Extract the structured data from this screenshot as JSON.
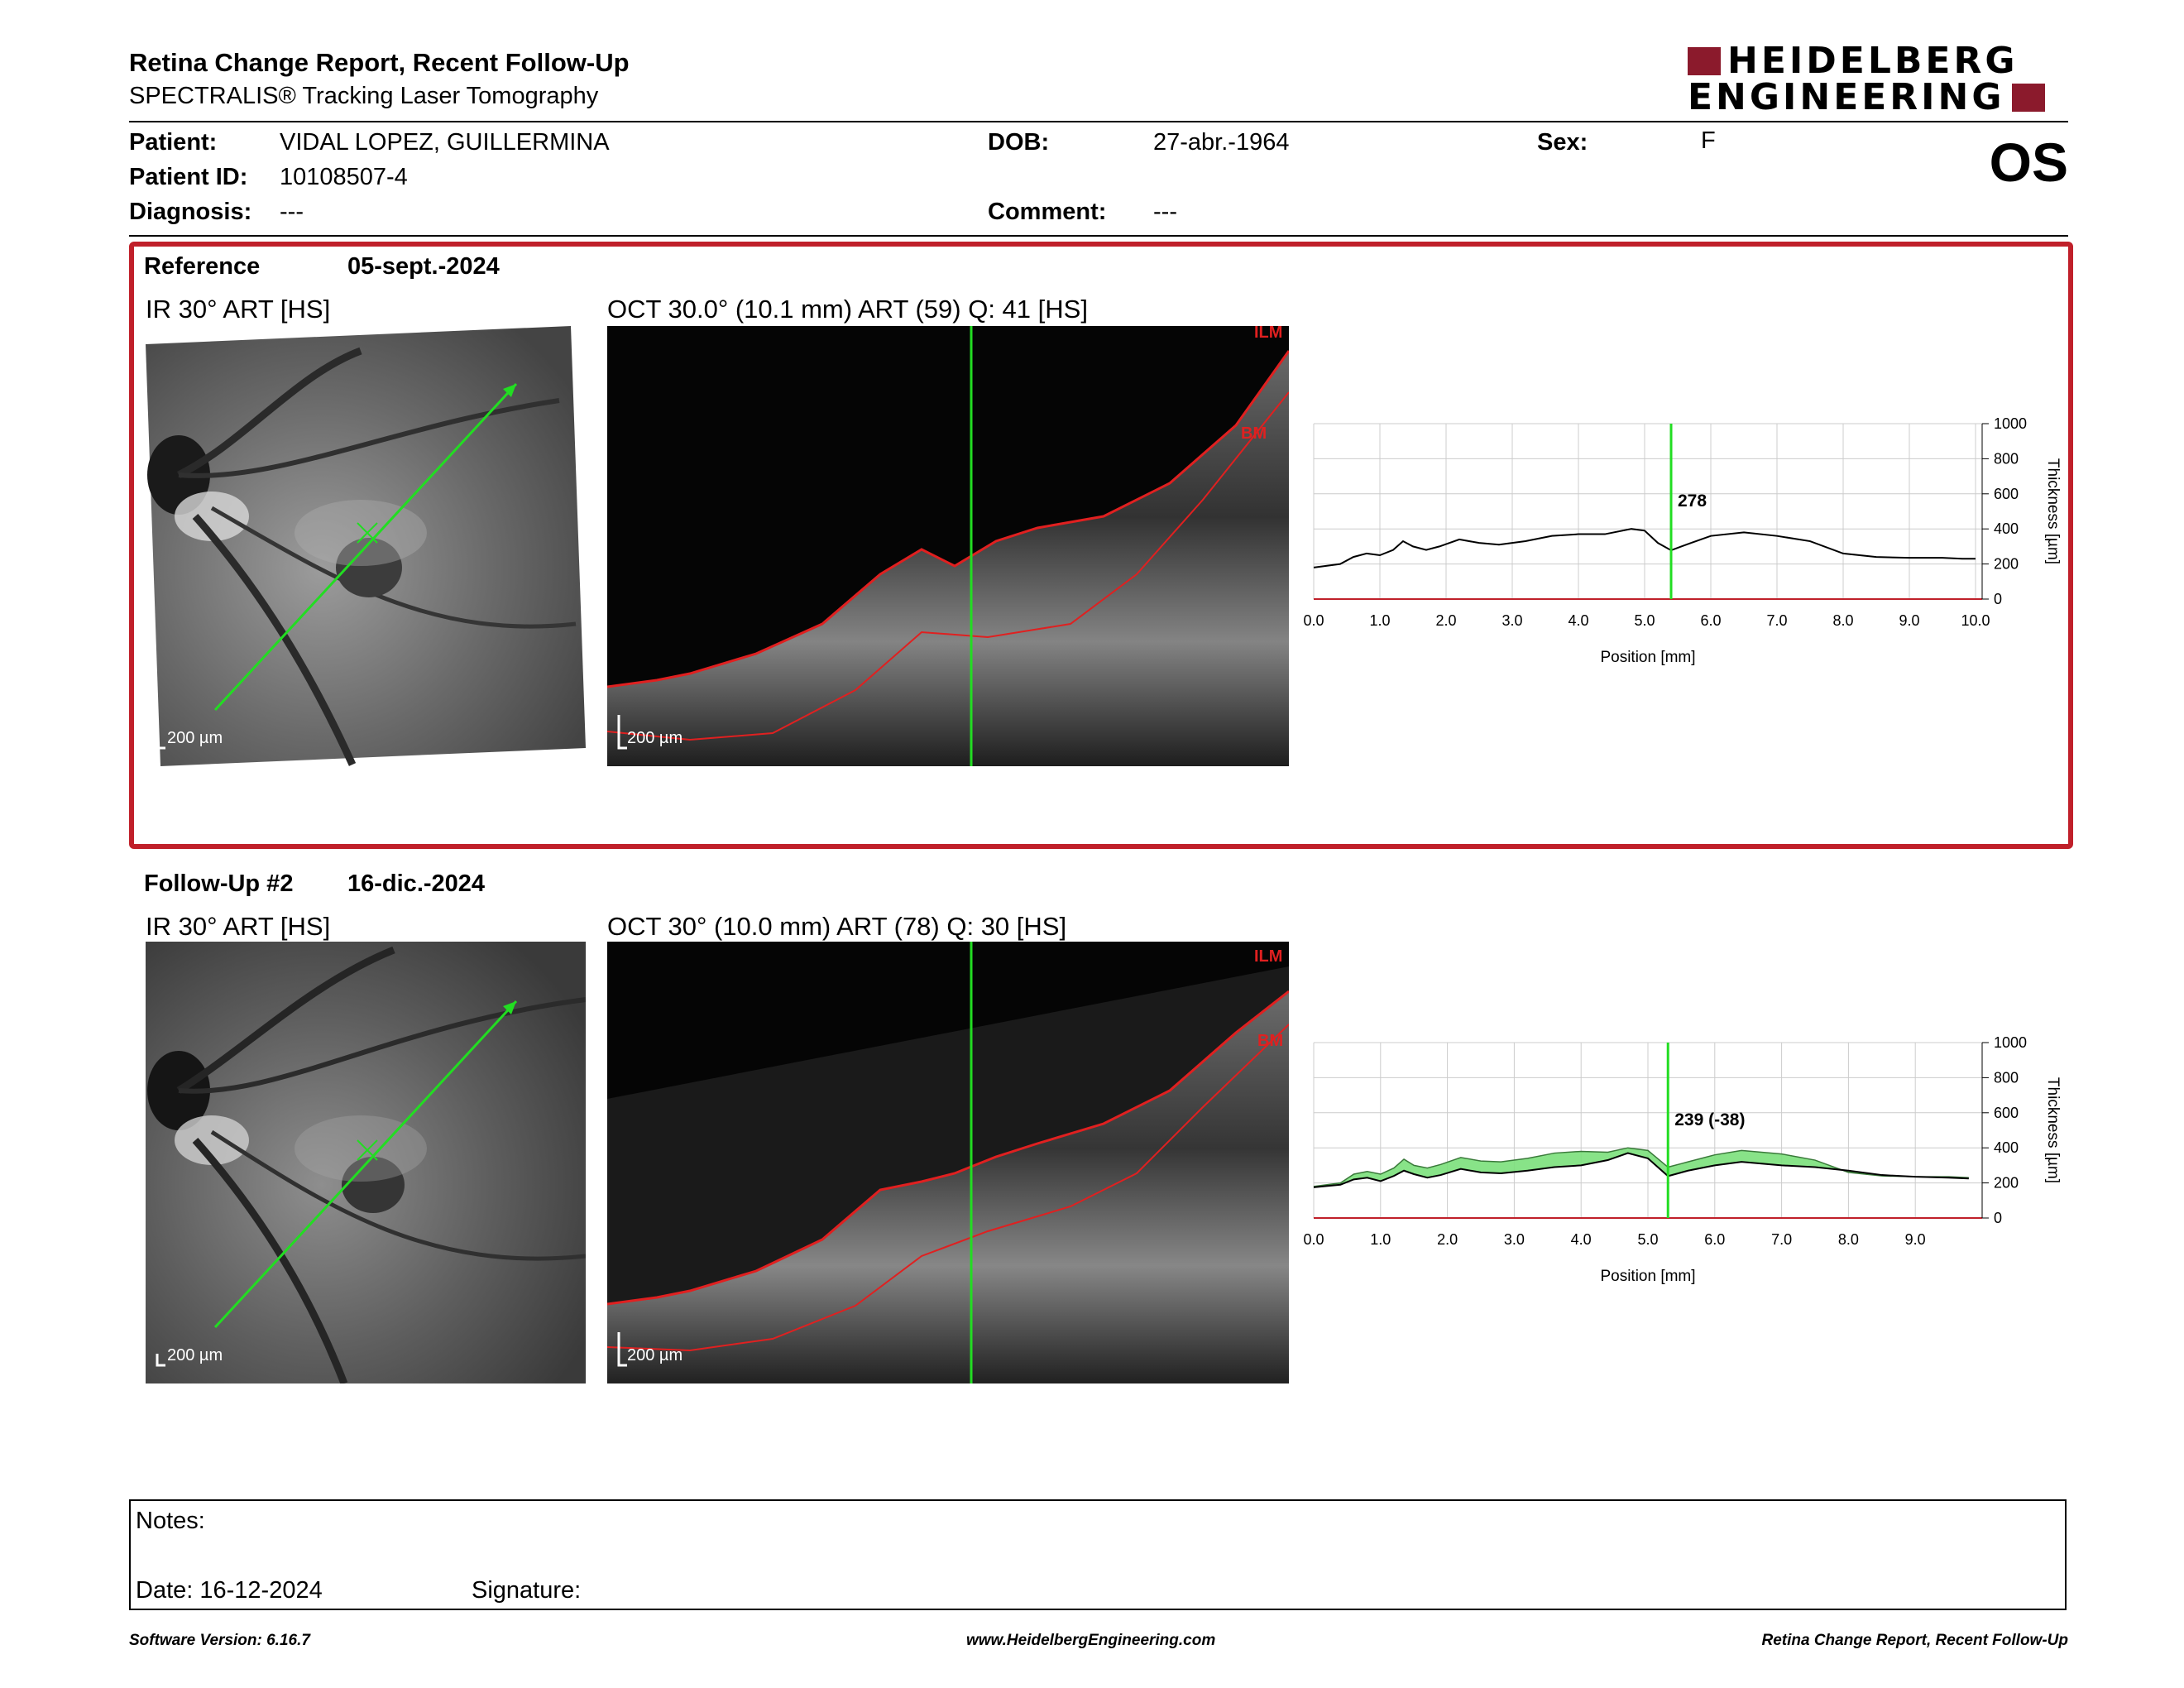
{
  "header": {
    "title": "Retina Change Report, Recent Follow-Up",
    "subtitle": "SPECTRALIS® Tracking Laser Tomography",
    "logo_line1": "HEIDELBERG",
    "logo_line2": "ENGINEERING",
    "eye": "OS"
  },
  "patient": {
    "patient_label": "Patient:",
    "patient_name": "VIDAL LOPEZ, GUILLERMINA",
    "id_label": "Patient ID:",
    "id_value": "10108507-4",
    "diagnosis_label": "Diagnosis:",
    "diagnosis_value": "---",
    "dob_label": "DOB:",
    "dob_value": "27-abr.-1964",
    "comment_label": "Comment:",
    "comment_value": "---",
    "sex_label": "Sex:",
    "sex_value": "F"
  },
  "reference": {
    "label": "Reference",
    "date": "05-sept.-2024",
    "ir_caption": "IR 30° ART [HS]",
    "oct_caption": "OCT 30.0° (10.1 mm) ART (59) Q: 41 [HS]",
    "scale_label": "200 µm",
    "oct_scale_label": "200 µm",
    "layer_ilm": "ILM",
    "layer_bm": "BM"
  },
  "followup": {
    "label": "Follow-Up #2",
    "date": "16-dic.-2024",
    "ir_caption": "IR 30° ART [HS]",
    "oct_caption": "OCT 30° (10.0 mm) ART (78) Q: 30 [HS]",
    "scale_label": "200 µm",
    "oct_scale_label": "200 µm",
    "layer_ilm": "ILM",
    "layer_bm": "BM"
  },
  "chart_data": [
    {
      "type": "line",
      "xlabel": "Position [mm]",
      "ylabel": "Thickness [µm]",
      "xlim": [
        0,
        10.1
      ],
      "ylim": [
        0,
        1000
      ],
      "x_ticks": [
        "0.0",
        "1.0",
        "2.0",
        "3.0",
        "4.0",
        "5.0",
        "6.0",
        "7.0",
        "8.0",
        "9.0",
        "10.0"
      ],
      "y_ticks": [
        "0",
        "200",
        "400",
        "600",
        "800",
        "1000"
      ],
      "grid": true,
      "cursor_x": 5.4,
      "cursor_label": "278",
      "series": [
        {
          "x": [
            0,
            0.4,
            0.6,
            0.8,
            1.0,
            1.2,
            1.35,
            1.5,
            1.7,
            1.9,
            2.2,
            2.5,
            2.8,
            3.2,
            3.6,
            4.0,
            4.4,
            4.8,
            5.0,
            5.2,
            5.4,
            5.7,
            6.0,
            6.5,
            7.0,
            7.5,
            8.0,
            8.5,
            9.0,
            9.5,
            9.8,
            10.0
          ],
          "values": [
            180,
            200,
            240,
            260,
            250,
            280,
            330,
            300,
            280,
            300,
            340,
            320,
            310,
            330,
            360,
            370,
            370,
            400,
            390,
            320,
            278,
            320,
            360,
            380,
            360,
            330,
            260,
            240,
            235,
            235,
            230,
            230
          ]
        }
      ]
    },
    {
      "type": "area",
      "xlabel": "Position [mm]",
      "ylabel": "Thickness [µm]",
      "xlim": [
        0,
        10.0
      ],
      "ylim": [
        0,
        1000
      ],
      "x_ticks": [
        "0.0",
        "1.0",
        "2.0",
        "3.0",
        "4.0",
        "5.0",
        "6.0",
        "7.0",
        "8.0",
        "9.0"
      ],
      "y_ticks": [
        "0",
        "200",
        "400",
        "600",
        "800",
        "1000"
      ],
      "grid": true,
      "cursor_x": 5.3,
      "cursor_label": "239 (-38)",
      "fill_color": "#7be07b",
      "series": [
        {
          "x": [
            0,
            0.4,
            0.6,
            0.8,
            1.0,
            1.2,
            1.35,
            1.5,
            1.7,
            1.9,
            2.2,
            2.5,
            2.8,
            3.2,
            3.6,
            4.0,
            4.4,
            4.7,
            5.0,
            5.3,
            5.6,
            6.0,
            6.4,
            7.0,
            7.5,
            8.0,
            8.5,
            9.0,
            9.5,
            9.8
          ],
          "values": [
            175,
            190,
            220,
            230,
            210,
            240,
            270,
            250,
            230,
            245,
            280,
            260,
            255,
            270,
            290,
            300,
            330,
            370,
            340,
            239,
            270,
            300,
            320,
            300,
            290,
            270,
            245,
            235,
            230,
            225
          ]
        },
        {
          "x": [
            0,
            0.4,
            0.6,
            0.8,
            1.0,
            1.2,
            1.35,
            1.5,
            1.7,
            1.9,
            2.2,
            2.5,
            2.8,
            3.2,
            3.6,
            4.0,
            4.4,
            4.7,
            5.0,
            5.3,
            5.6,
            6.0,
            6.4,
            7.0,
            7.5,
            8.0,
            8.5,
            9.0,
            9.5,
            9.8
          ],
          "values": [
            180,
            200,
            250,
            265,
            250,
            285,
            335,
            300,
            285,
            305,
            345,
            325,
            320,
            340,
            370,
            380,
            375,
            400,
            385,
            290,
            320,
            360,
            385,
            365,
            330,
            260,
            240,
            235,
            235,
            230
          ]
        }
      ]
    }
  ],
  "notes": {
    "notes_label": "Notes:",
    "date_label": "Date: 16-12-2024",
    "signature_label": "Signature:"
  },
  "footer": {
    "software": "Software Version: 6.16.7",
    "website": "www.HeidelbergEngineering.com",
    "report_name": "Retina Change Report, Recent Follow-Up"
  },
  "colors": {
    "frame_red": "#c0202a",
    "logo_red": "#8b1a2c",
    "scan_green": "#22dd22",
    "layer_red": "#e02020"
  }
}
